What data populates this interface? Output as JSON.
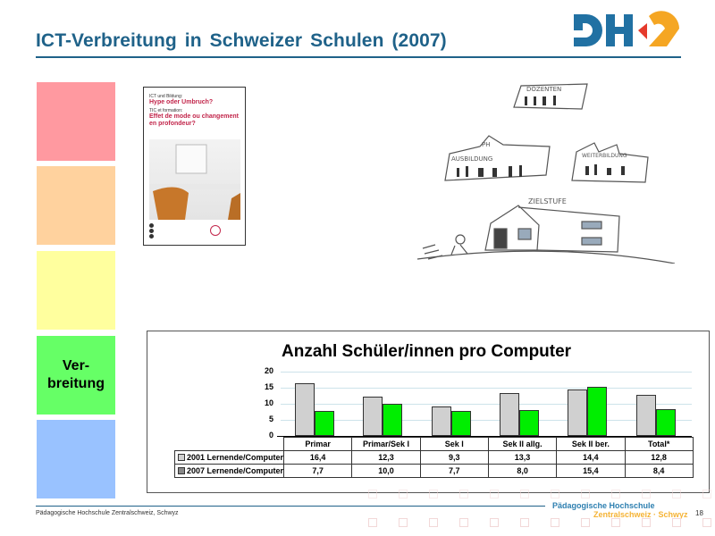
{
  "header": {
    "title": "ICT-Verbreitung  in  Schweizer  Schulen  (2007)",
    "logo": "PHZ"
  },
  "colors": {
    "title_blue": "#1f6289",
    "logo_blue": "#2171a3",
    "logo_orange": "#f5a623",
    "logo_red": "#e53a2c",
    "footer_orange": "#f5b335"
  },
  "nav_blocks": [
    {
      "label": "",
      "color": "#ff99a0"
    },
    {
      "label": "",
      "color": "#ffd29e"
    },
    {
      "label": "",
      "color": "#ffff9e"
    },
    {
      "label_line1": "Ver-",
      "label_line2": "breitung",
      "color": "#66ff66"
    },
    {
      "label": "",
      "color": "#99c2ff"
    }
  ],
  "brochure": {
    "line1": "ICT und Bildung:",
    "line2": "Hype oder Umbruch?",
    "line3": "TIC et formation:",
    "line4": "Effet de mode ou changement en profondeur?"
  },
  "sketch": {
    "labels": [
      "DOZENTEN",
      "PH",
      "AUSBILDUNG",
      "WEITERBILDUNG",
      "ZIELSTUFE"
    ]
  },
  "chart_data": {
    "type": "bar",
    "title": "Anzahl Schüler/innen pro Computer",
    "categories": [
      "Primar",
      "Primar/Sek I",
      "Sek I",
      "Sek II allg.",
      "Sek II ber.",
      "Total*"
    ],
    "series": [
      {
        "name": "2001 Lernende/Computer",
        "values": [
          16.4,
          12.3,
          9.3,
          13.3,
          14.4,
          12.8
        ],
        "color": "#d0d0d0"
      },
      {
        "name": "2007 Lernende/Computer",
        "values": [
          7.7,
          10.0,
          7.7,
          8.0,
          15.4,
          8.4
        ],
        "color": "#00ee00"
      }
    ],
    "yticks": [
      "20",
      "15",
      "10",
      "5",
      "0"
    ],
    "ylim": [
      0,
      20
    ],
    "grid": true,
    "legend_position": "data-table",
    "table_values": {
      "row2001": [
        "16,4",
        "12,3",
        "9,3",
        "13,3",
        "14,4",
        "12,8"
      ],
      "row2007": [
        "7,7",
        "10,0",
        "7,7",
        "8,0",
        "15,4",
        "8,4"
      ]
    }
  },
  "footer": {
    "left": "Pädagogische Hochschule Zentralschweiz, Schwyz",
    "org_line1": "Pädagogische Hochschule",
    "org_line2": "Zentralschweiz · Schwyz",
    "page": "18"
  }
}
